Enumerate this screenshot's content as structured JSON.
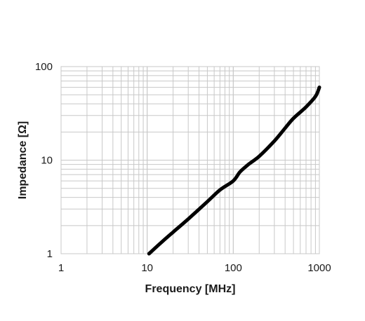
{
  "chart_data": {
    "type": "line",
    "title": "",
    "xlabel": "Frequency [MHz]",
    "ylabel": "Impedance [Ω]",
    "xscale": "log",
    "yscale": "log",
    "xlim": [
      1,
      1000
    ],
    "ylim": [
      1,
      100
    ],
    "grid": true,
    "legend": "none",
    "x_ticks": [
      "1",
      "10",
      "100",
      "1000"
    ],
    "y_ticks": [
      "1",
      "10",
      "100"
    ],
    "line_color": "#000000",
    "grid_color": "#c8c8c8",
    "series": [
      {
        "x": [
          10.5,
          15,
          20,
          30,
          50,
          70,
          100,
          120,
          150,
          200,
          300,
          400,
          500,
          700,
          900,
          1000
        ],
        "y": [
          1.0,
          1.35,
          1.7,
          2.35,
          3.6,
          4.8,
          6.0,
          7.5,
          9.0,
          11.0,
          16.0,
          22.0,
          28.0,
          37.0,
          48.0,
          60.0
        ]
      }
    ]
  }
}
